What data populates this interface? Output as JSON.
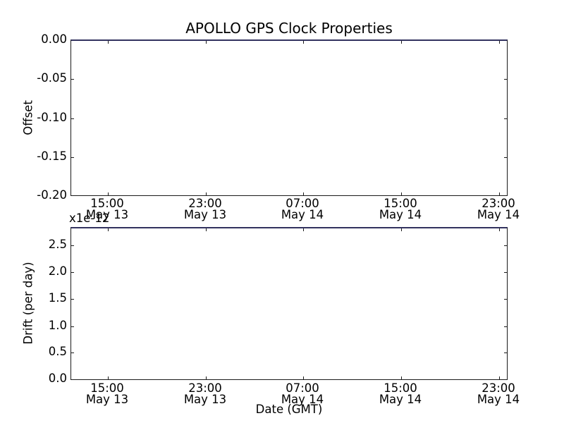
{
  "figure": {
    "title": "APOLLO GPS Clock Properties",
    "background_color": "#ffffff",
    "spine_color": "#1a1a1a",
    "top_spine_color": "#32325f",
    "text_color": "#000000"
  },
  "chart_data": [
    {
      "type": "line",
      "subplot": "top",
      "ylabel": "Offset",
      "xlabel": "",
      "ylim": [
        -0.2,
        0.0
      ],
      "yticks": [
        "0.00",
        "-0.05",
        "-0.10",
        "-0.15",
        "-0.20"
      ],
      "xticks": [
        [
          "15:00",
          "May 13"
        ],
        [
          "23:00",
          "May 13"
        ],
        [
          "07:00",
          "May 14"
        ],
        [
          "15:00",
          "May 14"
        ],
        [
          "23:00",
          "May 14"
        ]
      ],
      "series": [],
      "grid": false,
      "legend": null,
      "tick_direction": "in"
    },
    {
      "type": "line",
      "subplot": "bottom",
      "ylabel": "Drift (per day)",
      "xlabel": "Date (GMT)",
      "y_offset_text": "x1e-12",
      "ylim": [
        0.0,
        2.83
      ],
      "yticks": [
        "2.5",
        "2.0",
        "1.5",
        "1.0",
        "0.5",
        "0.0"
      ],
      "xticks": [
        [
          "15:00",
          "May 13"
        ],
        [
          "23:00",
          "May 13"
        ],
        [
          "07:00",
          "May 14"
        ],
        [
          "15:00",
          "May 14"
        ],
        [
          "23:00",
          "May 14"
        ]
      ],
      "series": [],
      "grid": false,
      "legend": null,
      "tick_direction": "in"
    }
  ]
}
